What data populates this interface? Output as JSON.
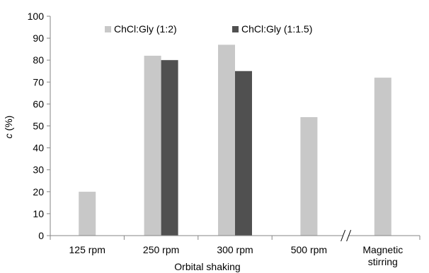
{
  "chart_data": {
    "type": "bar",
    "title": "",
    "ylabel_prefix": "c",
    "ylabel_suffix": " (%)",
    "ylim": [
      0,
      100
    ],
    "yticks": [
      0,
      10,
      20,
      30,
      40,
      50,
      60,
      70,
      80,
      90,
      100
    ],
    "categories": [
      "125 rpm",
      "250 rpm",
      "300 rpm",
      "500 rpm",
      "Magnetic stirring"
    ],
    "category_lines": [
      [
        "125 rpm"
      ],
      [
        "250 rpm"
      ],
      [
        "300 rpm"
      ],
      [
        "500 rpm"
      ],
      [
        "Magnetic",
        "stirring"
      ]
    ],
    "group_label": "Orbital shaking",
    "axis_break_after_category": 3,
    "grid": false,
    "legend_position": "top",
    "series": [
      {
        "name": "ChCl:Gly (1:2)",
        "color": "#c8c8c8",
        "values": [
          20,
          82,
          87,
          54,
          72
        ]
      },
      {
        "name": "ChCl:Gly (1:1.5)",
        "color": "#505050",
        "values": [
          null,
          80,
          75,
          null,
          null
        ]
      }
    ]
  }
}
